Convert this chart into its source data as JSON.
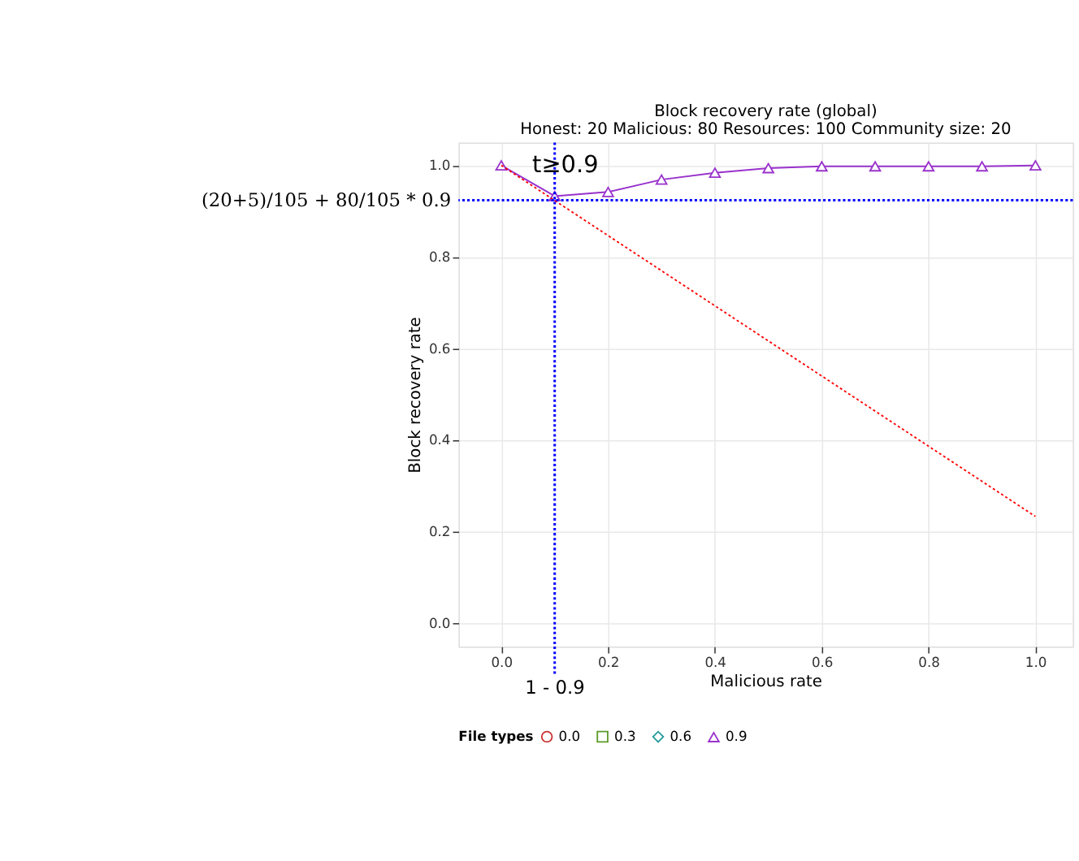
{
  "chart_data": {
    "type": "line",
    "title": "Block recovery rate (global)",
    "subtitle": "Honest: 20 Malicious: 80 Resources: 100 Community size: 20",
    "xlabel": "Malicious rate",
    "ylabel": "Block recovery rate",
    "legend_title": "File types",
    "x": [
      0,
      0.1,
      0.2,
      0.3,
      0.4,
      0.5,
      0.6,
      0.7,
      0.8,
      0.9,
      1.0
    ],
    "series": [
      {
        "name": "0.0",
        "color": "#cc3333",
        "marker": "circle",
        "values": [
          null,
          null,
          null,
          null,
          null,
          null,
          null,
          null,
          null,
          null,
          null
        ]
      },
      {
        "name": "0.3",
        "color": "#5c9a2a",
        "marker": "square",
        "values": [
          null,
          null,
          null,
          null,
          null,
          null,
          null,
          null,
          null,
          null,
          null
        ]
      },
      {
        "name": "0.6",
        "color": "#229a9a",
        "marker": "diamond",
        "values": [
          null,
          null,
          null,
          null,
          null,
          null,
          null,
          null,
          null,
          null,
          null
        ]
      },
      {
        "name": "0.9",
        "color": "#9932cc",
        "marker": "triangle",
        "values": [
          1.0,
          0.933,
          0.942,
          0.969,
          0.984,
          0.994,
          0.998,
          0.998,
          0.998,
          0.998,
          1.0
        ]
      },
      {
        "type": "line",
        "color": "#ff0000",
        "line_style": "dotted",
        "x": [
          0,
          1
        ],
        "values": [
          1.0,
          0.234
        ]
      }
    ],
    "xlim": [
      -0.08,
      1.07
    ],
    "ylim": [
      -0.05,
      1.05
    ],
    "xticks": [
      {
        "value": 0,
        "label": "0.0"
      },
      {
        "value": 0.2,
        "label": "0.2"
      },
      {
        "value": 0.4,
        "label": "0.4"
      },
      {
        "value": 0.6,
        "label": "0.6"
      },
      {
        "value": 0.8,
        "label": "0.8"
      },
      {
        "value": 1,
        "label": "1.0"
      }
    ],
    "yticks": [
      {
        "value": 0,
        "label": "0.0"
      },
      {
        "value": 0.2,
        "label": "0.2"
      },
      {
        "value": 0.4,
        "label": "0.4"
      },
      {
        "value": 0.6,
        "label": "0.6"
      },
      {
        "value": 0.8,
        "label": "0.8"
      },
      {
        "value": 1,
        "label": "1.0"
      }
    ],
    "ref_lines": [
      {
        "axis": "x",
        "value": 0.1,
        "color": "#0000ff",
        "line_style": "dotted"
      },
      {
        "axis": "y",
        "value": 0.924,
        "label": "(20+5)/105 + 80/105 * 0.9",
        "color": "#0000ff",
        "line_style": "dotted"
      }
    ],
    "annotations": [
      "t≥0.9",
      "1 - 0.9"
    ],
    "grid": true,
    "legend": "bottom"
  }
}
